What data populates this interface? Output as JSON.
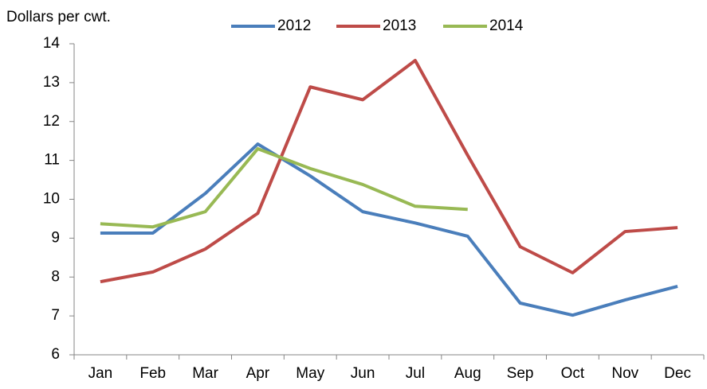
{
  "chart_data": {
    "type": "line",
    "y_axis_label": "Dollars per cwt.",
    "categories": [
      "Jan",
      "Feb",
      "Mar",
      "Apr",
      "May",
      "Jun",
      "Jul",
      "Aug",
      "Sep",
      "Oct",
      "Nov",
      "Dec"
    ],
    "series": [
      {
        "name": "2012",
        "color": "#4a7ebb",
        "values": [
          9.13,
          9.13,
          10.15,
          11.42,
          10.6,
          9.68,
          9.39,
          9.05,
          7.33,
          7.02,
          7.41,
          7.76
        ]
      },
      {
        "name": "2013",
        "color": "#be4b48",
        "values": [
          7.88,
          8.13,
          8.72,
          9.64,
          12.89,
          12.56,
          13.57,
          11.13,
          8.78,
          8.11,
          9.17,
          9.27
        ]
      },
      {
        "name": "2014",
        "color": "#98b954",
        "values": [
          9.37,
          9.29,
          9.68,
          11.3,
          10.79,
          10.38,
          9.82,
          9.74,
          null,
          null,
          null,
          null
        ]
      }
    ],
    "ylim": [
      6,
      14
    ],
    "yticks": [
      6,
      7,
      8,
      9,
      10,
      11,
      12,
      13,
      14
    ],
    "grid": false,
    "legend": "top"
  }
}
